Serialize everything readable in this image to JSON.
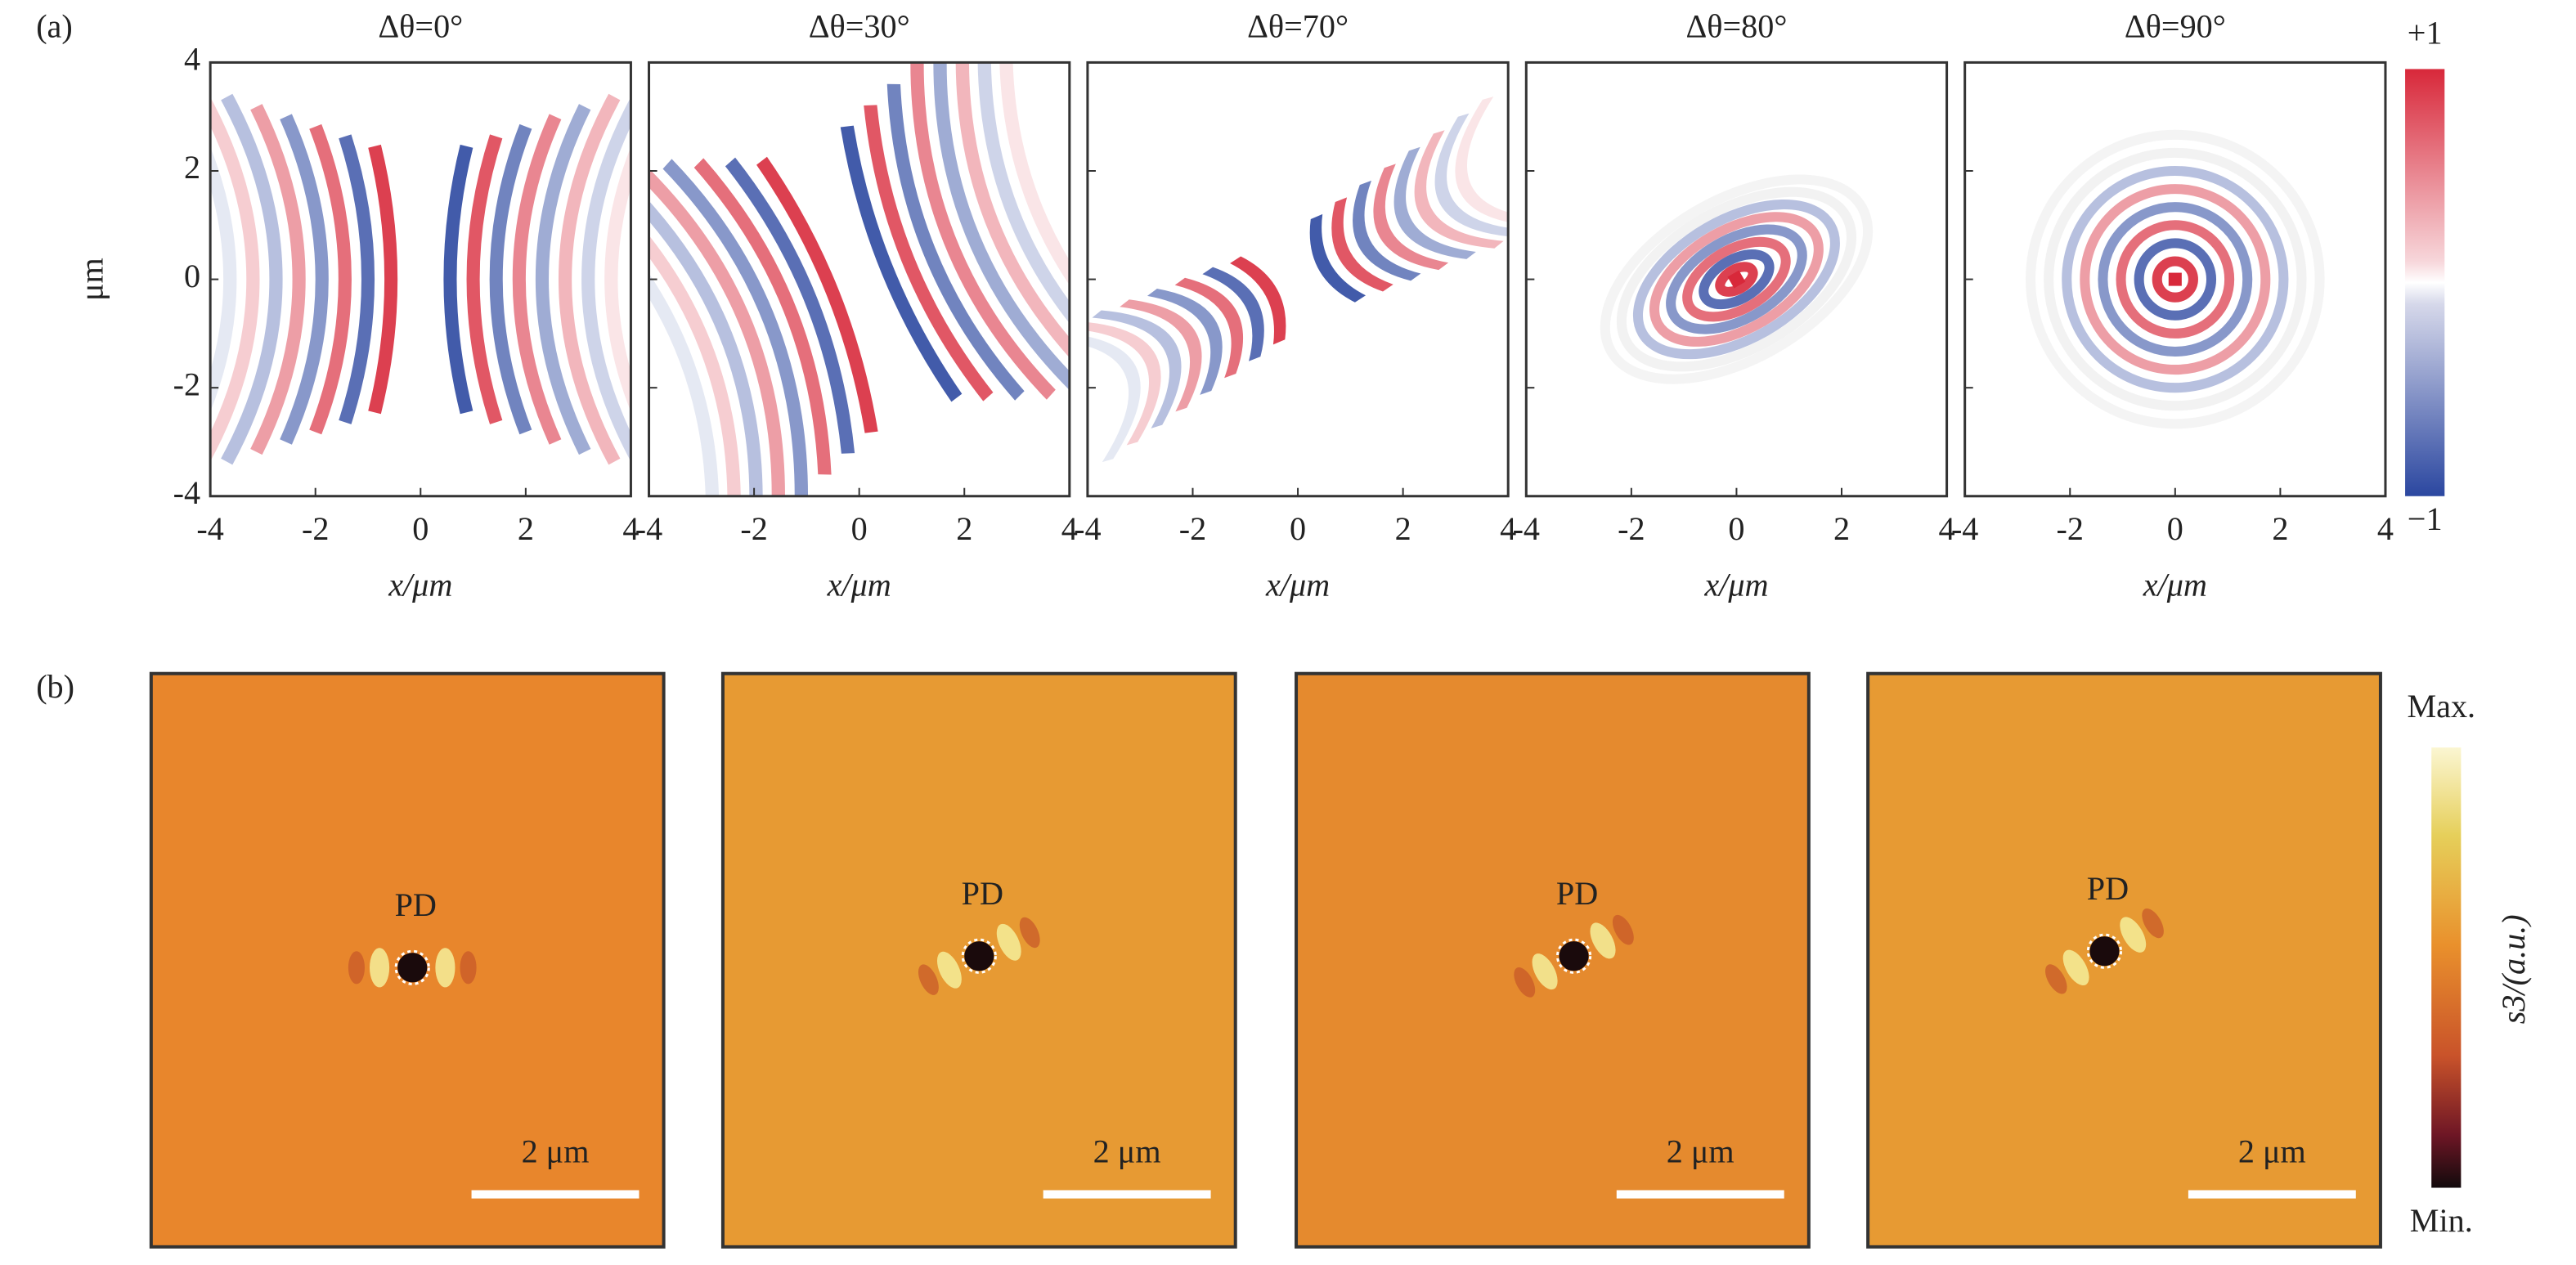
{
  "panel_a": {
    "label": "(a)",
    "titles": [
      "Δθ=0°",
      "Δθ=30°",
      "Δθ=70°",
      "Δθ=80°",
      "Δθ=90°"
    ],
    "ylabel": "μm",
    "xlabel": "x/μm",
    "xlim": [
      -4,
      4
    ],
    "ylim": [
      -4,
      4
    ],
    "xticks": [
      -4,
      -2,
      0,
      2,
      4
    ],
    "yticks": [
      -4,
      -2,
      0,
      2,
      4
    ],
    "colorbar": {
      "max": "+1",
      "min": "−1"
    }
  },
  "panel_b": {
    "label": "(b)",
    "marker": "PD",
    "scale_bar": "2 μm",
    "colorbar": {
      "label": "s3/(a.u.)",
      "max": "Max.",
      "min": "Min."
    }
  }
}
